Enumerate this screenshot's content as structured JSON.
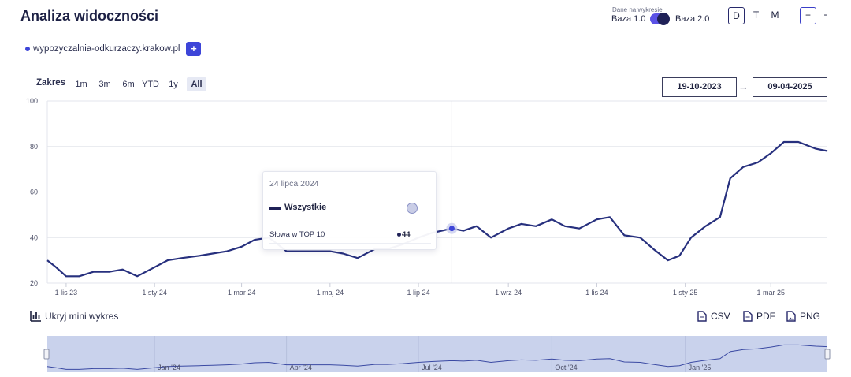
{
  "header": {
    "title": "Analiza widoczności",
    "toggle_caption": "Dane na wykresie",
    "toggle_left": "Baza 1.0",
    "toggle_right": "Baza 2.0",
    "period": [
      "D",
      "T",
      "M"
    ],
    "active_period": "D",
    "zoom_in": "+",
    "zoom_out": "-"
  },
  "domain": {
    "label": "wypozyczalnia-odkurzaczy.krakow.pl",
    "add": "+"
  },
  "range": {
    "label": "Zakres",
    "options": [
      "1m",
      "3m",
      "6m",
      "YTD",
      "1y",
      "All"
    ],
    "active": "All",
    "date_from": "19-10-2023",
    "date_to": "09-04-2025",
    "arrow": "→"
  },
  "tooltip": {
    "date": "24 lipca 2024",
    "series": "Wszystkie",
    "metric": "Słowa w TOP 10",
    "value": "44"
  },
  "footer": {
    "hide_mini": "Ukryj mini wykres",
    "exports": [
      "CSV",
      "PDF",
      "PNG"
    ]
  },
  "mini_labels": [
    "Jan '24",
    "Apr '24",
    "Jul '24",
    "Oct '24",
    "Jan '25"
  ],
  "colors": {
    "line": "#27307e",
    "accent": "#3d45d8",
    "mini_fill": "#c9d2ec",
    "mini_line": "#3b4aa3"
  },
  "chart_data": {
    "type": "line",
    "title": "",
    "xlabel": "",
    "ylabel": "",
    "ylim": [
      20,
      100
    ],
    "yticks": [
      20,
      40,
      60,
      80,
      100
    ],
    "xtick_labels": [
      "1 lis 23",
      "1 sty 24",
      "1 mar 24",
      "1 maj 24",
      "1 lip 24",
      "1 wrz 24",
      "1 lis 24",
      "1 sty 25",
      "1 mar 25"
    ],
    "xtick_dates": [
      "2023-11-01",
      "2024-01-01",
      "2024-03-01",
      "2024-05-01",
      "2024-07-01",
      "2024-09-01",
      "2024-11-01",
      "2025-01-01",
      "2025-03-01"
    ],
    "crosshair_date": "2024-07-24",
    "series": [
      {
        "name": "Wszystkie",
        "x": [
          "2023-10-19",
          "2023-10-25",
          "2023-11-01",
          "2023-11-10",
          "2023-11-20",
          "2023-12-01",
          "2023-12-10",
          "2023-12-20",
          "2024-01-01",
          "2024-01-10",
          "2024-01-20",
          "2024-02-01",
          "2024-02-10",
          "2024-02-20",
          "2024-03-01",
          "2024-03-10",
          "2024-03-20",
          "2024-04-01",
          "2024-04-10",
          "2024-04-20",
          "2024-05-01",
          "2024-05-10",
          "2024-05-20",
          "2024-06-01",
          "2024-06-10",
          "2024-06-20",
          "2024-07-01",
          "2024-07-10",
          "2024-07-24",
          "2024-08-01",
          "2024-08-10",
          "2024-08-20",
          "2024-09-01",
          "2024-09-10",
          "2024-09-20",
          "2024-10-01",
          "2024-10-10",
          "2024-10-20",
          "2024-11-01",
          "2024-11-10",
          "2024-11-20",
          "2024-12-01",
          "2024-12-10",
          "2024-12-20",
          "2024-12-28",
          "2025-01-05",
          "2025-01-15",
          "2025-01-25",
          "2025-02-01",
          "2025-02-10",
          "2025-02-20",
          "2025-03-01",
          "2025-03-10",
          "2025-03-20",
          "2025-04-01",
          "2025-04-09"
        ],
        "values": [
          30,
          27,
          23,
          23,
          25,
          25,
          26,
          23,
          27,
          30,
          31,
          32,
          33,
          34,
          36,
          39,
          40,
          34,
          34,
          34,
          34,
          33,
          31,
          35,
          35,
          37,
          40,
          42,
          44,
          43,
          45,
          40,
          44,
          46,
          45,
          48,
          45,
          44,
          48,
          49,
          41,
          40,
          35,
          30,
          32,
          40,
          45,
          49,
          66,
          71,
          73,
          77,
          82,
          82,
          79,
          78
        ]
      }
    ]
  }
}
